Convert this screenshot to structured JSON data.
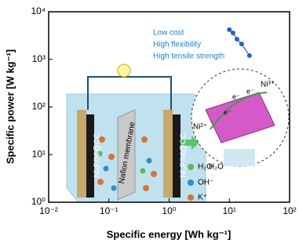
{
  "chart_data": {
    "type": "line",
    "x_label": "Specific energy [Wh kg⁻¹]",
    "y_label": "Specific power [W kg⁻¹]",
    "log_x": true,
    "log_y": true,
    "xlim": [
      0.01,
      100
    ],
    "xticks": [
      {
        "value": 0.01,
        "label": "10⁻²"
      },
      {
        "value": 0.1,
        "label": "10⁻¹"
      },
      {
        "value": 1,
        "label": "10⁰"
      },
      {
        "value": 10,
        "label": "10¹"
      },
      {
        "value": 100,
        "label": "10²"
      }
    ],
    "ylim": [
      1,
      10000
    ],
    "yticks": [
      {
        "value": 1,
        "label": "10⁰"
      },
      {
        "value": 10,
        "label": "10¹"
      },
      {
        "value": 100,
        "label": "10²"
      },
      {
        "value": 1000,
        "label": "10³"
      },
      {
        "value": 10000,
        "label": "10⁴"
      }
    ],
    "series": [
      {
        "color": "#1f5fe0",
        "x": [
          10,
          11.5,
          13.4,
          16,
          21.6
        ],
        "values": [
          4200,
          3600,
          2650,
          2100,
          1200
        ]
      }
    ],
    "annotations": [
      "Low cost",
      "High flexibility",
      "High tensile strength"
    ],
    "illustration": {
      "electrode": "Ni₃P/Ni@CC",
      "membrane": "Nafion membrane",
      "legend": [
        "H₂O",
        "OH⁻",
        "K⁺"
      ],
      "ni3": "Ni³⁺",
      "ni2": "Ni²⁺",
      "electron": "e⁻"
    }
  }
}
